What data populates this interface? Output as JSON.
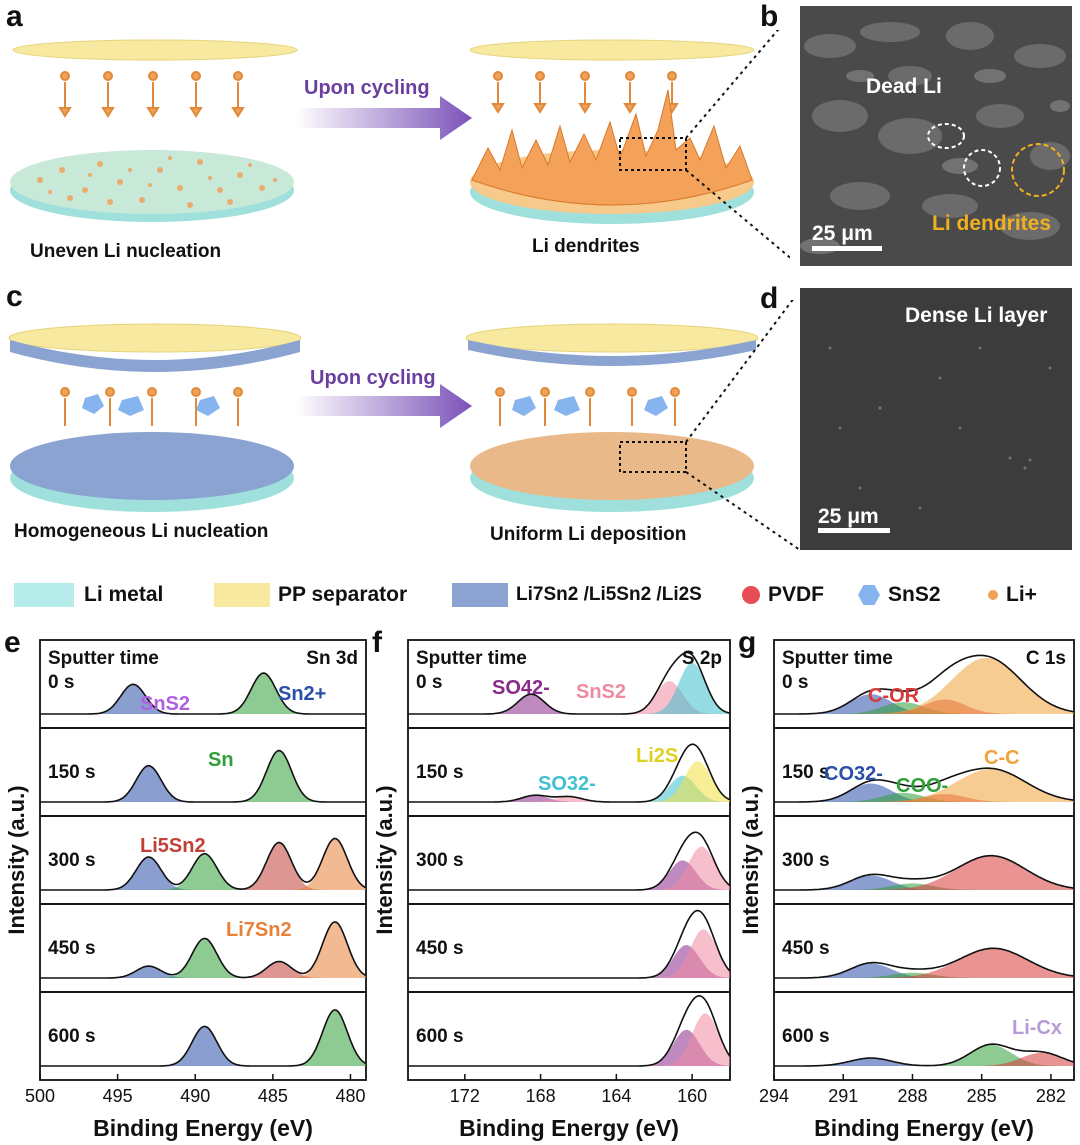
{
  "panels": {
    "a": "a",
    "b": "b",
    "c": "c",
    "d": "d",
    "e": "e",
    "f": "f",
    "g": "g"
  },
  "schematic_top": {
    "arrow_label": "Upon cycling",
    "left_caption": "Uneven Li nucleation",
    "right_caption": "Li dendrites"
  },
  "sem_b": {
    "dead_li": "Dead Li",
    "dendrites": "Li dendrites",
    "scale": "25 μm"
  },
  "schematic_bottom": {
    "arrow_label": "Upon cycling",
    "left_caption": "Homogeneous Li nucleation",
    "right_caption": "Uniform Li deposition"
  },
  "sem_d": {
    "label": "Dense Li layer",
    "scale": "25 μm"
  },
  "legend": {
    "li_metal": "Li metal",
    "pp_separator": "PP separator",
    "composite": "Li7Sn2 /Li5Sn2 /Li2S",
    "pvdf": "PVDF",
    "sns2": "SnS2",
    "li_ion": "Li+"
  },
  "colors": {
    "li_metal": "#b5ecea",
    "separator": "#f7eaa0",
    "composite": "#8aa3d0",
    "pvdf": "#e84d55",
    "sns2": "#86b4ee",
    "li_ion": "#f0a25a",
    "dendrite": "#f4a259",
    "arrow": "#7b52b8"
  },
  "xps": {
    "ylabel": "Intensity (a.u.)",
    "xlabel": "Binding Energy (eV)",
    "sputter_label": "Sputter time",
    "times": [
      "0 s",
      "150 s",
      "300 s",
      "450 s",
      "600 s"
    ],
    "e": {
      "title": "Sn 3d",
      "x_ticks": [
        "500",
        "495",
        "490",
        "485",
        "480"
      ],
      "labels": {
        "sns2": "SnS2",
        "sn2": "Sn2+",
        "sn": "Sn",
        "li5sn2": "Li5Sn2",
        "li7sn2": "Li7Sn2"
      }
    },
    "f": {
      "title": "S 2p",
      "x_ticks": [
        "172",
        "168",
        "164",
        "160"
      ],
      "labels": {
        "so4": "SO42-",
        "sns2": "SnS2",
        "so3": "SO32-",
        "li2s": "Li2S"
      }
    },
    "g": {
      "title": "C 1s",
      "x_ticks": [
        "294",
        "291",
        "288",
        "285",
        "282"
      ],
      "labels": {
        "cor": "C-OR",
        "co3": "CO32-",
        "coo": "COO-",
        "cc": "C-C",
        "lic": "Li-Cx"
      }
    }
  },
  "chart_data": [
    {
      "type": "line",
      "title": "Sn 3d",
      "xlabel": "Binding Energy (eV)",
      "ylabel": "Intensity (a.u.)",
      "xlim": [
        500,
        479
      ],
      "series": [
        {
          "name": "0 s",
          "peaks": [
            {
              "center": 494.0,
              "height": 0.45
            },
            {
              "center": 485.6,
              "height": 0.62
            }
          ]
        },
        {
          "name": "150 s",
          "peaks": [
            {
              "center": 493.0,
              "height": 0.55
            },
            {
              "center": 484.6,
              "height": 0.78
            }
          ]
        },
        {
          "name": "300 s",
          "peaks": [
            {
              "center": 493.0,
              "height": 0.5
            },
            {
              "center": 489.4,
              "height": 0.55
            },
            {
              "center": 484.6,
              "height": 0.72
            },
            {
              "center": 481.0,
              "height": 0.78
            }
          ]
        },
        {
          "name": "450 s",
          "peaks": [
            {
              "center": 493.0,
              "height": 0.18
            },
            {
              "center": 489.4,
              "height": 0.6
            },
            {
              "center": 484.6,
              "height": 0.25
            },
            {
              "center": 481.0,
              "height": 0.85
            }
          ]
        },
        {
          "name": "600 s",
          "peaks": [
            {
              "center": 489.4,
              "height": 0.6
            },
            {
              "center": 481.0,
              "height": 0.85
            }
          ]
        }
      ]
    },
    {
      "type": "line",
      "title": "S 2p",
      "xlabel": "Binding Energy (eV)",
      "ylabel": "Intensity (a.u.)",
      "xlim": [
        175,
        158
      ],
      "series": [
        {
          "name": "0 s",
          "peaks": [
            {
              "center": 168.5,
              "height": 0.3
            },
            {
              "center": 161.2,
              "height": 0.5
            },
            {
              "center": 160.0,
              "height": 0.78
            }
          ]
        },
        {
          "name": "150 s",
          "peaks": [
            {
              "center": 168.3,
              "height": 0.1
            },
            {
              "center": 166.5,
              "height": 0.08
            },
            {
              "center": 160.5,
              "height": 0.4
            },
            {
              "center": 159.7,
              "height": 0.62
            }
          ]
        },
        {
          "name": "300 s",
          "peaks": [
            {
              "center": 160.5,
              "height": 0.45
            },
            {
              "center": 159.5,
              "height": 0.66
            }
          ]
        },
        {
          "name": "450 s",
          "peaks": [
            {
              "center": 160.3,
              "height": 0.5
            },
            {
              "center": 159.4,
              "height": 0.74
            }
          ]
        },
        {
          "name": "600 s",
          "peaks": [
            {
              "center": 160.3,
              "height": 0.55
            },
            {
              "center": 159.3,
              "height": 0.8
            }
          ]
        }
      ]
    },
    {
      "type": "line",
      "title": "C 1s",
      "xlabel": "Binding Energy (eV)",
      "ylabel": "Intensity (a.u.)",
      "xlim": [
        294,
        281
      ],
      "series": [
        {
          "name": "0 s",
          "peaks": [
            {
              "center": 289.8,
              "height": 0.3
            },
            {
              "center": 288.4,
              "height": 0.18
            },
            {
              "center": 286.6,
              "height": 0.22
            },
            {
              "center": 284.8,
              "height": 0.85
            }
          ]
        },
        {
          "name": "150 s",
          "peaks": [
            {
              "center": 289.8,
              "height": 0.28
            },
            {
              "center": 288.4,
              "height": 0.14
            },
            {
              "center": 286.6,
              "height": 0.12
            },
            {
              "center": 284.6,
              "height": 0.5
            }
          ]
        },
        {
          "name": "300 s",
          "peaks": [
            {
              "center": 289.8,
              "height": 0.22
            },
            {
              "center": 288.0,
              "height": 0.1
            },
            {
              "center": 284.6,
              "height": 0.52
            }
          ]
        },
        {
          "name": "450 s",
          "peaks": [
            {
              "center": 289.8,
              "height": 0.22
            },
            {
              "center": 288.0,
              "height": 0.08
            },
            {
              "center": 284.5,
              "height": 0.45
            }
          ]
        },
        {
          "name": "600 s",
          "peaks": [
            {
              "center": 289.8,
              "height": 0.12
            },
            {
              "center": 284.6,
              "height": 0.32
            },
            {
              "center": 282.4,
              "height": 0.2
            }
          ]
        }
      ]
    }
  ]
}
